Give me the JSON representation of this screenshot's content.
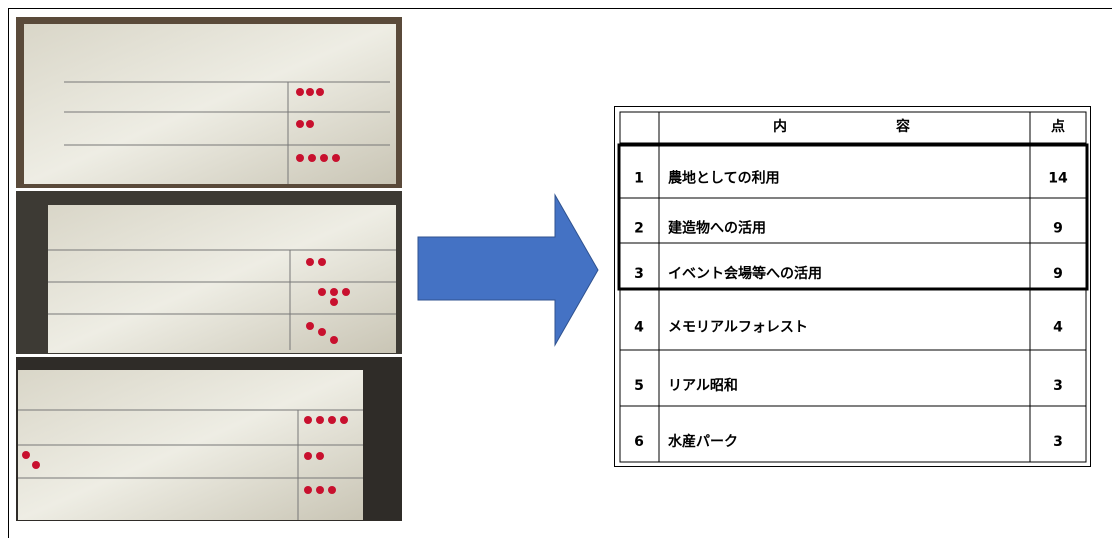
{
  "table": {
    "header": {
      "content": [
        "内",
        "容"
      ],
      "points": "点"
    },
    "rows": [
      [
        "1",
        "農地としての利用",
        "14"
      ],
      [
        "2",
        "建造物への活用",
        "9"
      ],
      [
        "3",
        "イベント会場等への活用",
        "9"
      ],
      [
        "4",
        "メモリアルフォレスト",
        "4"
      ],
      [
        "5",
        "リアル昭和",
        "3"
      ],
      [
        "6",
        "水産パーク",
        "3"
      ]
    ]
  }
}
